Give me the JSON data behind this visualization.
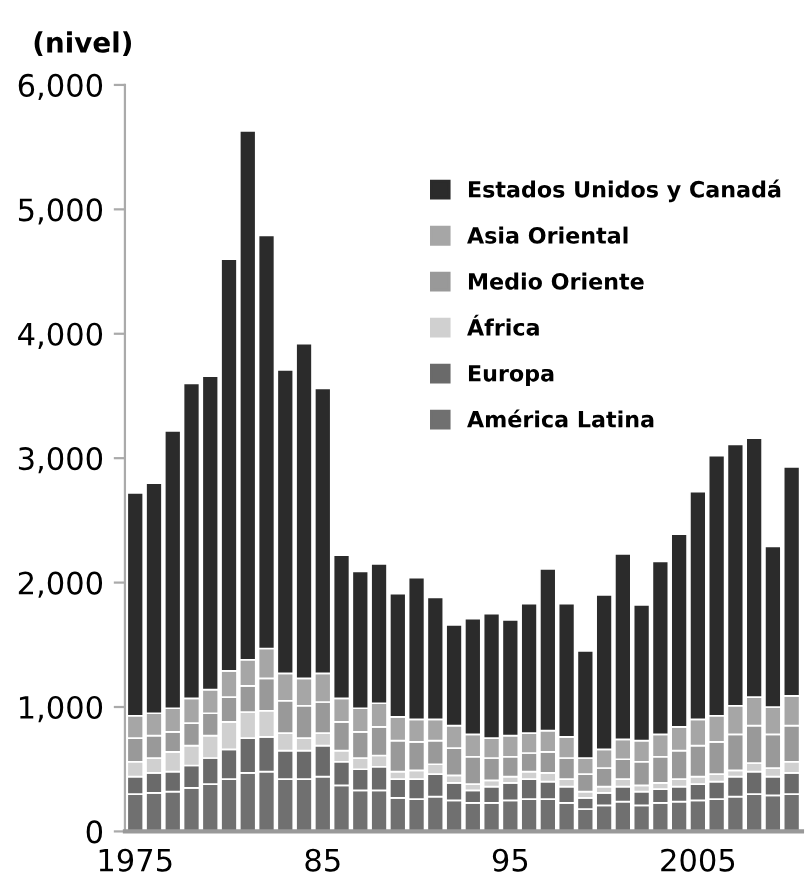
{
  "chart_data": {
    "type": "bar",
    "stacked": true,
    "ylabel": "(nivel)",
    "categories": [
      "1975",
      null,
      null,
      null,
      null,
      null,
      null,
      null,
      null,
      null,
      "85",
      null,
      null,
      null,
      null,
      null,
      null,
      null,
      null,
      null,
      "95",
      null,
      null,
      null,
      null,
      null,
      null,
      null,
      null,
      null,
      "2005",
      null,
      null,
      null,
      null,
      null
    ],
    "series": [
      {
        "name": "América Latina",
        "color": "#707070",
        "values": [
          300,
          310,
          320,
          350,
          380,
          420,
          470,
          480,
          420,
          420,
          440,
          370,
          330,
          330,
          270,
          260,
          280,
          250,
          230,
          230,
          250,
          260,
          260,
          230,
          180,
          210,
          240,
          210,
          230,
          240,
          250,
          260,
          280,
          300,
          290,
          300
        ]
      },
      {
        "name": "Europa",
        "color": "#6a6a6a",
        "values": [
          140,
          160,
          160,
          180,
          210,
          240,
          280,
          280,
          230,
          230,
          250,
          190,
          170,
          190,
          150,
          160,
          180,
          140,
          100,
          130,
          140,
          160,
          140,
          130,
          90,
          100,
          120,
          110,
          110,
          120,
          130,
          140,
          160,
          180,
          150,
          170
        ]
      },
      {
        "name": "África",
        "color": "#d0d0d0",
        "values": [
          120,
          120,
          160,
          160,
          180,
          220,
          210,
          210,
          140,
          100,
          100,
          90,
          90,
          90,
          60,
          70,
          80,
          60,
          50,
          50,
          50,
          60,
          70,
          60,
          50,
          50,
          60,
          50,
          50,
          60,
          60,
          60,
          50,
          70,
          70,
          90
        ]
      },
      {
        "name": "Medio Oriente",
        "color": "#999999",
        "values": [
          190,
          180,
          160,
          180,
          180,
          200,
          210,
          260,
          260,
          260,
          250,
          230,
          210,
          230,
          250,
          230,
          190,
          220,
          220,
          180,
          160,
          150,
          170,
          170,
          140,
          150,
          160,
          190,
          210,
          230,
          250,
          260,
          290,
          300,
          270,
          290
        ]
      },
      {
        "name": "Asia Oriental",
        "color": "#a6a6a6",
        "values": [
          180,
          180,
          190,
          200,
          190,
          210,
          210,
          240,
          220,
          220,
          230,
          190,
          190,
          190,
          190,
          180,
          170,
          180,
          180,
          160,
          170,
          160,
          170,
          170,
          130,
          150,
          160,
          170,
          180,
          190,
          210,
          210,
          230,
          230,
          220,
          240
        ]
      },
      {
        "name": "Estados Unidos y Canadá",
        "color": "#2b2b2b",
        "values": [
          1790,
          1850,
          2230,
          2530,
          2520,
          3310,
          4250,
          3320,
          2440,
          2690,
          2290,
          1150,
          1100,
          1120,
          990,
          1140,
          980,
          810,
          930,
          1000,
          930,
          1040,
          1300,
          1070,
          860,
          1240,
          1490,
          1090,
          1390,
          1550,
          1830,
          2090,
          2100,
          2080,
          1290,
          1840
        ]
      }
    ],
    "ylim": [
      0,
      6000
    ],
    "yticks": [
      0,
      {
        "value": 1000,
        "label": "1,000"
      },
      {
        "value": 2000,
        "label": "2,000"
      },
      {
        "value": 3000,
        "label": "3,000"
      },
      {
        "value": 4000,
        "label": "4,000"
      },
      {
        "value": 5000,
        "label": "5,000"
      },
      {
        "value": 6000,
        "label": "6,000"
      }
    ],
    "legend": "top right",
    "grid": false
  }
}
